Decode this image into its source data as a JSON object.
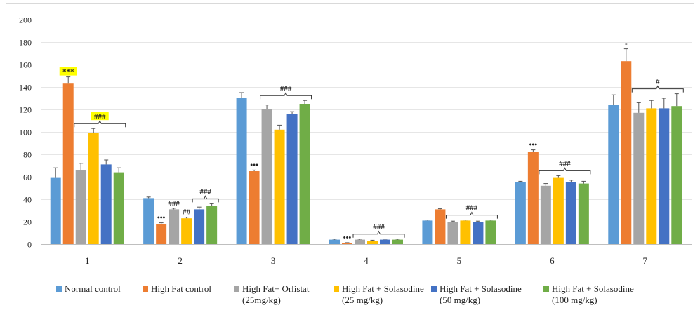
{
  "chart_data": {
    "type": "bar",
    "title": "",
    "xlabel": "",
    "ylabel": "",
    "ylim": [
      0,
      200
    ],
    "yticks": [
      0,
      20,
      40,
      60,
      80,
      100,
      120,
      140,
      160,
      180,
      200
    ],
    "grid": "horizontal",
    "legend_position": "bottom",
    "categories": [
      "1",
      "2",
      "3",
      "4",
      "5",
      "6",
      "7"
    ],
    "series": [
      {
        "name": "Normal control",
        "color": "#5b9bd5",
        "values": [
          59,
          41,
          130,
          4,
          21,
          55,
          124
        ],
        "errors": [
          9,
          1,
          5,
          0.5,
          0.5,
          1,
          9
        ]
      },
      {
        "name": "High Fat  control",
        "color": "#ed7d31",
        "values": [
          143,
          18,
          65,
          1,
          31,
          82,
          163
        ],
        "errors": [
          6,
          1,
          1,
          0.3,
          0.5,
          2,
          11
        ]
      },
      {
        "name": "High Fat+ Orlistat\n(25mg/kg)",
        "color": "#a5a5a5",
        "values": [
          66,
          31,
          120,
          4,
          20,
          52,
          117
        ],
        "errors": [
          6,
          1,
          4,
          0.5,
          0.5,
          2,
          9
        ]
      },
      {
        "name": "High Fat + Solasodine\n(25 mg/kg)",
        "color": "#ffc000",
        "values": [
          99,
          23,
          102,
          3,
          21,
          59,
          121
        ],
        "errors": [
          4,
          1,
          4,
          0.5,
          0.5,
          2,
          7
        ]
      },
      {
        "name": "High Fat + Solasodine\n(50 mg/kg)",
        "color": "#4472c4",
        "values": [
          71,
          31,
          116,
          4,
          20,
          55,
          121
        ],
        "errors": [
          4,
          2,
          2,
          0.5,
          0.5,
          2,
          9
        ]
      },
      {
        "name": "High Fat + Solasodine\n(100 mg/kg)",
        "color": "#70ad47",
        "values": [
          64,
          34,
          125,
          4,
          21,
          54,
          123
        ],
        "errors": [
          4,
          2,
          3,
          0.5,
          0.5,
          2,
          11
        ]
      }
    ],
    "annotations": [
      {
        "category": 0,
        "series": 1,
        "text": "***",
        "highlight": "#ffff00"
      },
      {
        "category": 0,
        "bracket": [
          2,
          5
        ],
        "text": "###",
        "highlight": "#ffff00"
      },
      {
        "category": 1,
        "series": 1,
        "text": "•••"
      },
      {
        "category": 1,
        "series": 2,
        "text": "###"
      },
      {
        "category": 1,
        "series": 3,
        "text": "##"
      },
      {
        "category": 1,
        "bracket": [
          4,
          5
        ],
        "text": "###"
      },
      {
        "category": 2,
        "series": 1,
        "text": "•••"
      },
      {
        "category": 2,
        "bracket": [
          2,
          5
        ],
        "text": "###"
      },
      {
        "category": 3,
        "series": 1,
        "text": "•••"
      },
      {
        "category": 3,
        "bracket": [
          2,
          5
        ],
        "text": "###"
      },
      {
        "category": 4,
        "bracket": [
          2,
          5
        ],
        "text": "###"
      },
      {
        "category": 5,
        "series": 1,
        "text": "•••"
      },
      {
        "category": 5,
        "bracket": [
          2,
          5
        ],
        "text": "###"
      },
      {
        "category": 6,
        "series": 1,
        "text": "-"
      },
      {
        "category": 6,
        "bracket": [
          2,
          5
        ],
        "text": "#"
      }
    ]
  }
}
